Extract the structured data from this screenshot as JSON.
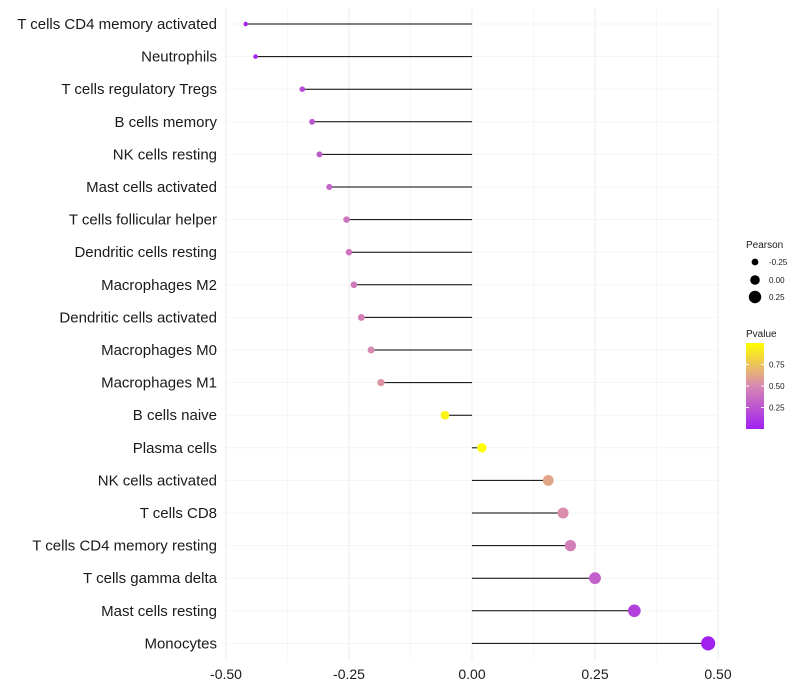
{
  "chart_data": {
    "type": "lollipop",
    "title": "",
    "xlabel": "",
    "ylabel": "",
    "xlim": [
      -0.5,
      0.5
    ],
    "x_ticks": [
      -0.5,
      -0.25,
      0.0,
      0.25,
      0.5
    ],
    "x_tick_labels": [
      "-0.50",
      "-0.25",
      "0.00",
      "0.25",
      "0.50"
    ],
    "grid": true,
    "legend_position": "right",
    "categories": [
      "T cells CD4 memory activated",
      "Neutrophils",
      "T cells regulatory  Tregs",
      "B cells memory",
      "NK cells resting",
      "Mast cells activated",
      "T cells follicular helper",
      "Dendritic cells resting",
      "Macrophages M2",
      "Dendritic cells activated",
      "Macrophages M0",
      "Macrophages M1",
      "B cells naive",
      "Plasma cells",
      "NK cells activated",
      "T cells CD8",
      "T cells CD4 memory resting",
      "T cells gamma delta",
      "Mast cells resting",
      "Monocytes"
    ],
    "pearson": [
      -0.46,
      -0.44,
      -0.345,
      -0.325,
      -0.31,
      -0.29,
      -0.255,
      -0.25,
      -0.24,
      -0.225,
      -0.205,
      -0.185,
      -0.055,
      0.02,
      0.155,
      0.185,
      0.2,
      0.25,
      0.33,
      0.48
    ],
    "pvalue": [
      0.02,
      0.03,
      0.2,
      0.25,
      0.28,
      0.33,
      0.4,
      0.4,
      0.43,
      0.45,
      0.5,
      0.55,
      0.95,
      1.0,
      0.62,
      0.52,
      0.45,
      0.3,
      0.15,
      0.01
    ],
    "size_legend": {
      "title": "Pearson",
      "labels": [
        "-0.25",
        "0.00",
        "0.25"
      ],
      "values": [
        -0.25,
        0.0,
        0.25
      ]
    },
    "color_legend": {
      "title": "Pvalue",
      "labels": [
        "0.75",
        "0.50",
        "0.25"
      ],
      "values": [
        0.75,
        0.5,
        0.25
      ],
      "range": [
        0.0,
        1.0
      ],
      "low_color": "#A020F0",
      "high_color": "#FFFF00"
    }
  }
}
